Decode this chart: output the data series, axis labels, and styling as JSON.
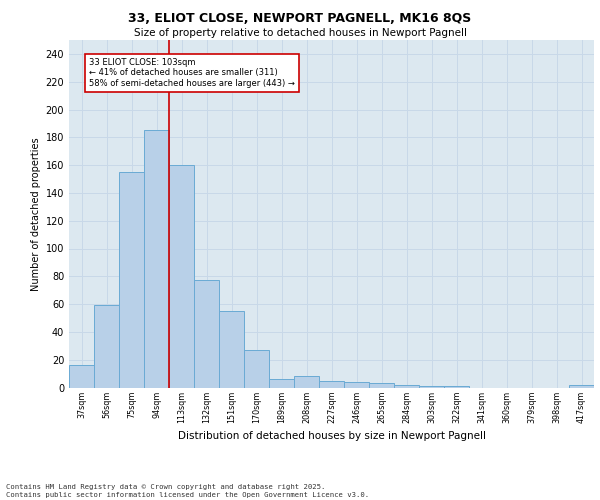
{
  "title1": "33, ELIOT CLOSE, NEWPORT PAGNELL, MK16 8QS",
  "title2": "Size of property relative to detached houses in Newport Pagnell",
  "xlabel": "Distribution of detached houses by size in Newport Pagnell",
  "ylabel": "Number of detached properties",
  "categories": [
    "37sqm",
    "56sqm",
    "75sqm",
    "94sqm",
    "113sqm",
    "132sqm",
    "151sqm",
    "170sqm",
    "189sqm",
    "208sqm",
    "227sqm",
    "246sqm",
    "265sqm",
    "284sqm",
    "303sqm",
    "322sqm",
    "341sqm",
    "360sqm",
    "379sqm",
    "398sqm",
    "417sqm"
  ],
  "values": [
    16,
    59,
    155,
    185,
    160,
    77,
    55,
    27,
    6,
    8,
    5,
    4,
    3,
    2,
    1,
    1,
    0,
    0,
    0,
    0,
    2
  ],
  "bar_color": "#b8d0e8",
  "bar_edge_color": "#6aaad4",
  "bar_edge_width": 0.7,
  "grid_color": "#c8d8e8",
  "bg_color": "#dce8f0",
  "vline_x": 3.5,
  "vline_color": "#cc0000",
  "annotation_text": "33 ELIOT CLOSE: 103sqm\n← 41% of detached houses are smaller (311)\n58% of semi-detached houses are larger (443) →",
  "annotation_box_color": "#cc0000",
  "ylim": [
    0,
    250
  ],
  "yticks": [
    0,
    20,
    40,
    60,
    80,
    100,
    120,
    140,
    160,
    180,
    200,
    220,
    240
  ],
  "footer1": "Contains HM Land Registry data © Crown copyright and database right 2025.",
  "footer2": "Contains public sector information licensed under the Open Government Licence v3.0."
}
